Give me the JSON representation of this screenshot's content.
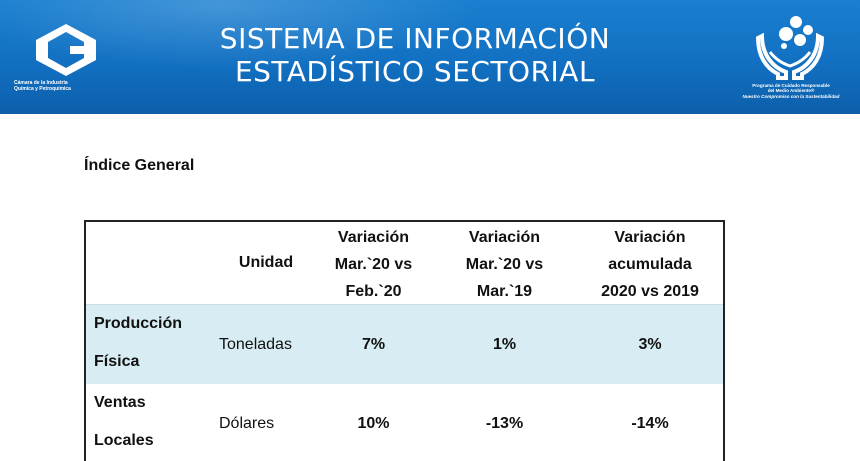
{
  "header": {
    "title_line1": "SISTEMA DE INFORMACIÓN",
    "title_line2": "ESTADÍSTICO SECTORIAL",
    "left_logo_caption": [
      "Cámara de la Industria",
      "Química y Petroquímica"
    ],
    "right_logo_caption": [
      "Programa de Cuidado Responsable",
      "del Medio Ambiente®",
      "Nuestro Compromiso con la Sustentabilidad"
    ],
    "colors": {
      "banner": "#1270c2",
      "row_highlight": "#d8ecf3"
    }
  },
  "section_title": "Índice General",
  "table": {
    "columns": {
      "unidad": "Unidad",
      "var_mes": [
        "Variación",
        "Mar.`20 vs",
        "Feb.`20"
      ],
      "var_anio": [
        "Variación",
        "Mar.`20 vs",
        "Mar.`19"
      ],
      "var_acum": [
        "Variación",
        "acumulada",
        "2020 vs 2019"
      ]
    },
    "rows": [
      {
        "label": [
          "Producción",
          "Física"
        ],
        "unidad": "Toneladas",
        "var_mes": "7%",
        "var_anio": "1%",
        "var_acum": "3%"
      },
      {
        "label": [
          "Ventas",
          "Locales"
        ],
        "unidad": "Dólares",
        "var_mes": "10%",
        "var_anio": "-13%",
        "var_acum": "-14%"
      }
    ]
  }
}
